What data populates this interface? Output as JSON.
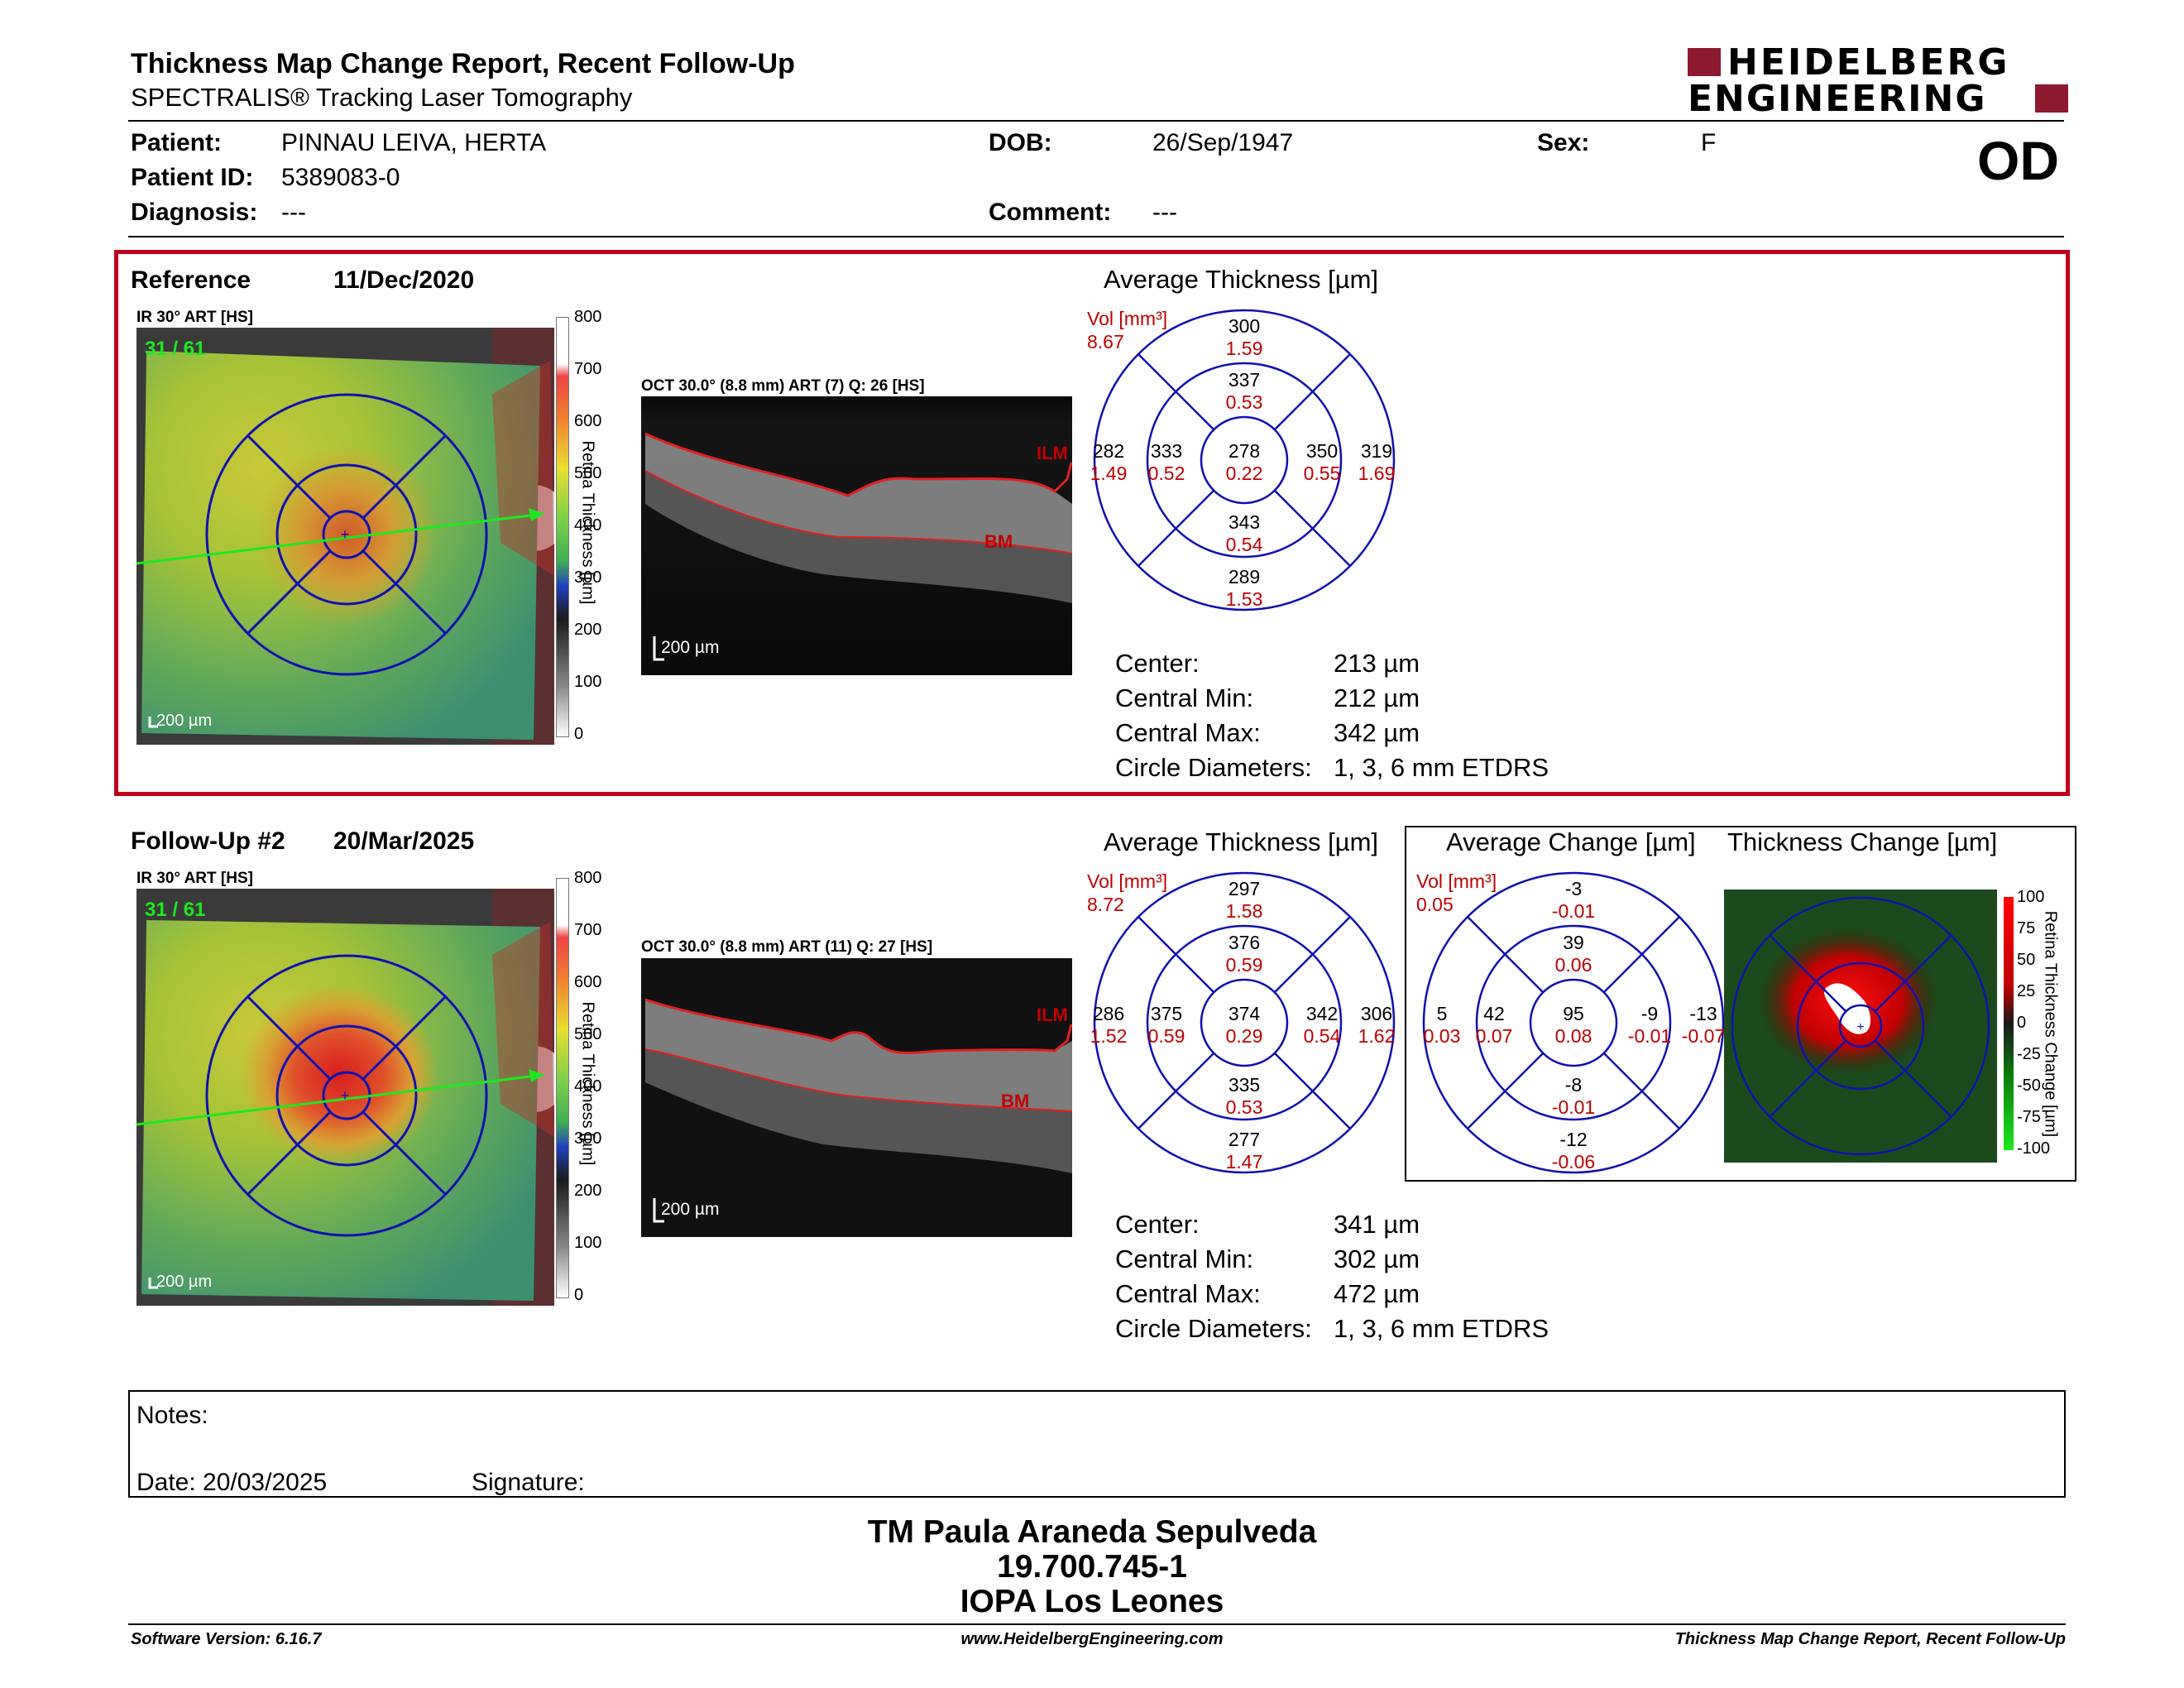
{
  "header": {
    "title": "Thickness Map Change Report, Recent Follow-Up",
    "subtitle": "SPECTRALIS® Tracking Laser Tomography",
    "logo_line1": "HEIDELBERG",
    "logo_line2": "ENGINEERING",
    "eye": "OD"
  },
  "patient": {
    "patient_label": "Patient:",
    "patient_value": "PINNAU LEIVA, HERTA",
    "id_label": "Patient ID:",
    "id_value": "5389083-0",
    "diagnosis_label": "Diagnosis:",
    "diagnosis_value": "---",
    "dob_label": "DOB:",
    "dob_value": "26/Sep/1947",
    "comment_label": "Comment:",
    "comment_value": "---",
    "sex_label": "Sex:",
    "sex_value": "F"
  },
  "reference": {
    "label": "Reference",
    "date": "11/Dec/2020",
    "ir_label": "IR 30° ART [HS]",
    "frame": "31 / 61",
    "scale_bar": "200 µm",
    "oct_label": "OCT 30.0° (8.8 mm) ART (7) Q: 26 [HS]",
    "oct_scale": "200 µm",
    "ilm": "ILM",
    "bm": "BM",
    "avg_title": "Average Thickness [µm]",
    "vol_label": "Vol [mm³]",
    "vol_value": "8.67",
    "etdrs": {
      "outer_top": [
        "300",
        "1.59"
      ],
      "inner_top": [
        "337",
        "0.53"
      ],
      "outer_left": [
        "282",
        "1.49"
      ],
      "inner_left": [
        "333",
        "0.52"
      ],
      "center": [
        "278",
        "0.22"
      ],
      "inner_right": [
        "350",
        "0.55"
      ],
      "outer_right": [
        "319",
        "1.69"
      ],
      "inner_bottom": [
        "343",
        "0.54"
      ],
      "outer_bottom": [
        "289",
        "1.53"
      ]
    },
    "stats": {
      "center_label": "Center:",
      "center_value": "213 µm",
      "min_label": "Central Min:",
      "min_value": "212 µm",
      "max_label": "Central Max:",
      "max_value": "342 µm",
      "diam_label": "Circle Diameters:",
      "diam_value": "1, 3, 6 mm ETDRS"
    }
  },
  "followup": {
    "label": "Follow-Up #2",
    "date": "20/Mar/2025",
    "ir_label": "IR 30° ART [HS]",
    "frame": "31 / 61",
    "scale_bar": "200 µm",
    "oct_label": "OCT 30.0° (8.8 mm) ART (11) Q: 27 [HS]",
    "oct_scale": "200 µm",
    "ilm": "ILM",
    "bm": "BM",
    "avg_title": "Average Thickness [µm]",
    "vol_label": "Vol [mm³]",
    "vol_value": "8.72",
    "etdrs": {
      "outer_top": [
        "297",
        "1.58"
      ],
      "inner_top": [
        "376",
        "0.59"
      ],
      "outer_left": [
        "286",
        "1.52"
      ],
      "inner_left": [
        "375",
        "0.59"
      ],
      "center": [
        "374",
        "0.29"
      ],
      "inner_right": [
        "342",
        "0.54"
      ],
      "outer_right": [
        "306",
        "1.62"
      ],
      "inner_bottom": [
        "335",
        "0.53"
      ],
      "outer_bottom": [
        "277",
        "1.47"
      ]
    },
    "stats": {
      "center_label": "Center:",
      "center_value": "341 µm",
      "min_label": "Central Min:",
      "min_value": "302 µm",
      "max_label": "Central Max:",
      "max_value": "472 µm",
      "diam_label": "Circle Diameters:",
      "diam_value": "1, 3, 6 mm ETDRS"
    },
    "change_title": "Average Change [µm]",
    "change_vol_label": "Vol [mm³]",
    "change_vol_value": "0.05",
    "change": {
      "outer_top": [
        "-3",
        "-0.01"
      ],
      "inner_top": [
        "39",
        "0.06"
      ],
      "outer_left": [
        "5",
        "0.03"
      ],
      "inner_left": [
        "42",
        "0.07"
      ],
      "center": [
        "95",
        "0.08"
      ],
      "inner_right": [
        "-9",
        "-0.01"
      ],
      "outer_right": [
        "-13",
        "-0.07"
      ],
      "inner_bottom": [
        "-8",
        "-0.01"
      ],
      "outer_bottom": [
        "-12",
        "-0.06"
      ]
    },
    "thickness_change_title": "Thickness Change [µm]"
  },
  "thickness_scale": {
    "ticks": [
      "800",
      "700",
      "600",
      "500",
      "400",
      "300",
      "200",
      "100",
      "0"
    ],
    "axis_label": "Retina Thickness [µm]"
  },
  "change_scale": {
    "ticks": [
      "100",
      "75",
      "50",
      "25",
      "0",
      "-25",
      "-50",
      "-75",
      "-100"
    ],
    "axis_label": "Retina Thickness Change [µm]"
  },
  "notes": {
    "notes_label": "Notes:",
    "date_label": "Date: 20/03/2025",
    "signature_label": "Signature:"
  },
  "signatory": {
    "name": "TM Paula Araneda Sepulveda",
    "id": "19.700.745-1",
    "institution": "IOPA Los Leones"
  },
  "footer": {
    "software": "Software Version: 6.16.7",
    "website": "www.HeidelbergEngineering.com",
    "report_name": "Thickness Map Change Report, Recent Follow-Up"
  },
  "colors": {
    "frame_red": "#c0001a",
    "grid_blue": "#1010b0",
    "value_red": "#cc0000",
    "logo_red": "#8c1a2e"
  }
}
